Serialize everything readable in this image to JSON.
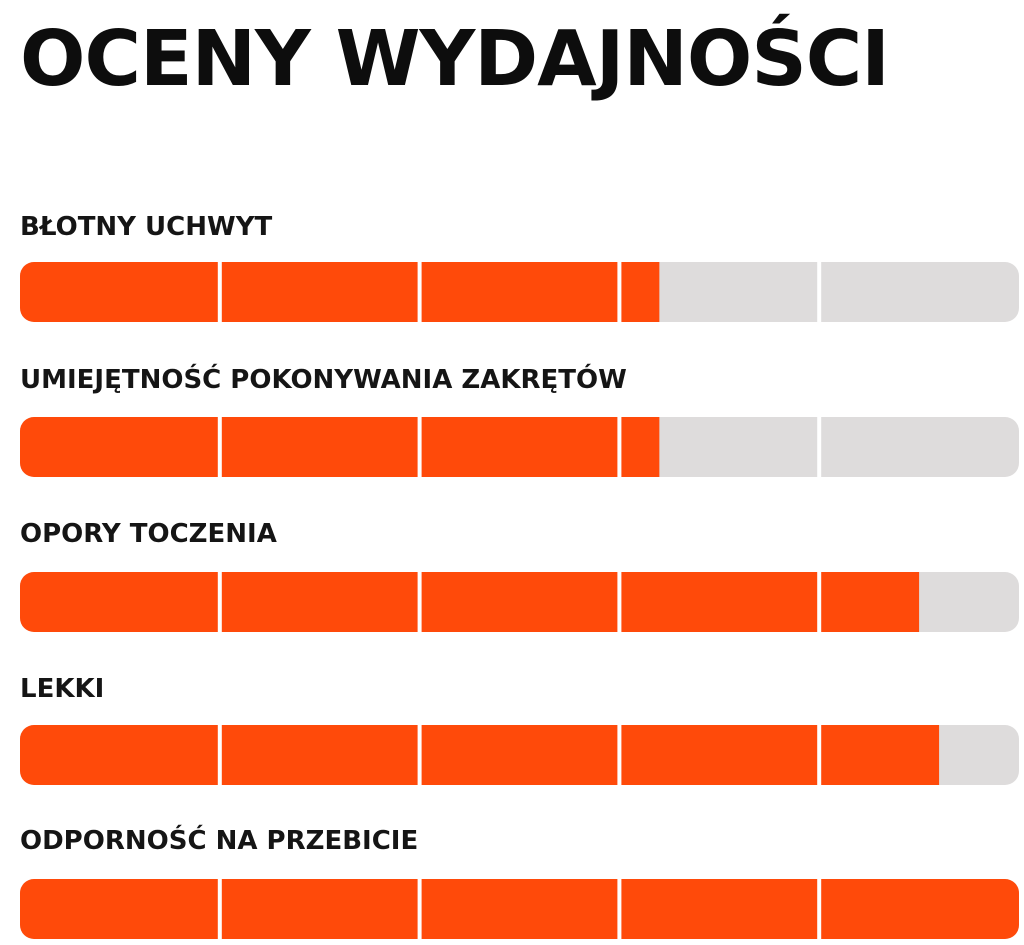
{
  "title": "OCENY WYDAJNOŚCI",
  "colors": {
    "fill": "#ff4a0a",
    "track": "#dedcdc",
    "divider": "#ffffff",
    "text": "#151515"
  },
  "chart_data": {
    "type": "bar",
    "orientation": "horizontal",
    "scale_max": 5,
    "segments": 5,
    "categories": [
      "BŁOTNY UCHWYT",
      "UMIEJĘTNOŚĆ POKONYWANIA ZAKRĘTÓW",
      "OPORY TOCZENIA",
      "LEKKI",
      "ODPORNOŚĆ NA PRZEBICIE"
    ],
    "values": [
      3.2,
      3.2,
      4.5,
      4.6,
      5.0
    ],
    "grid": false,
    "legend": "none"
  }
}
